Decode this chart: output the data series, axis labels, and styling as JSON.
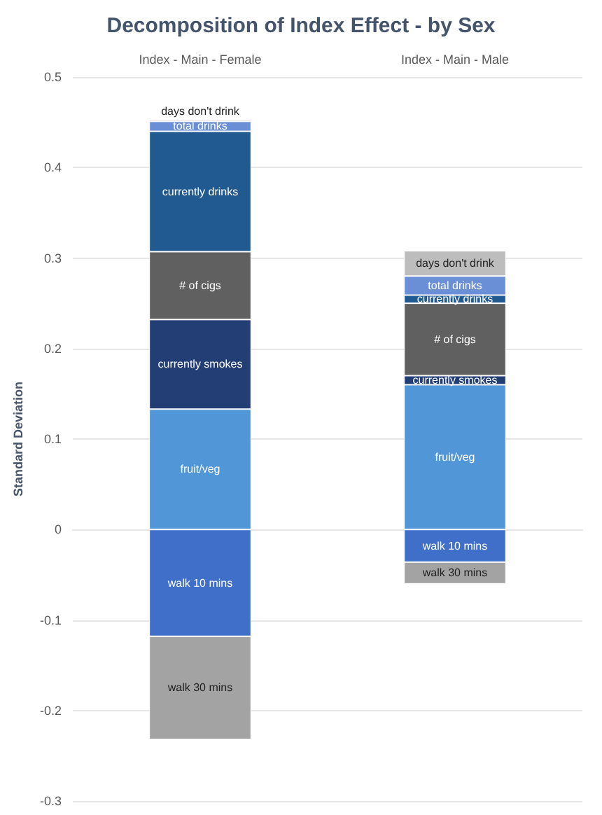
{
  "chart_data": {
    "type": "bar",
    "stacked": true,
    "title": "Decomposition of Index Effect - by Sex",
    "ylabel": "Standard Deviation",
    "categories": [
      "Index - Main - Female",
      "Index - Main - Male"
    ],
    "series": [
      {
        "name": "walk 10 mins",
        "color": "#3f6fc8",
        "values": [
          -0.118,
          -0.036
        ]
      },
      {
        "name": "walk 30 mins",
        "color": "#a3a3a3",
        "values": [
          -0.114,
          -0.024
        ]
      },
      {
        "name": "fruit/veg",
        "color": "#5196d6",
        "values": [
          0.133,
          0.16
        ]
      },
      {
        "name": "currently smokes",
        "color": "#233e75",
        "values": [
          0.099,
          0.01
        ]
      },
      {
        "name": "# of cigs",
        "color": "#606060",
        "values": [
          0.075,
          0.08
        ]
      },
      {
        "name": "currently drinks",
        "color": "#215a90",
        "values": [
          0.133,
          0.009
        ]
      },
      {
        "name": "total drinks",
        "color": "#6a8fd6",
        "values": [
          0.011,
          0.021
        ]
      },
      {
        "name": "days don't drink",
        "color": "#bdbdbd",
        "values": [
          0.002,
          0.028
        ]
      }
    ],
    "ylim": [
      -0.3,
      0.5
    ],
    "yticks": [
      -0.3,
      -0.2,
      -0.1,
      0,
      0.1,
      0.2,
      0.3,
      0.4,
      0.5
    ],
    "grid": "y",
    "legend": false
  }
}
